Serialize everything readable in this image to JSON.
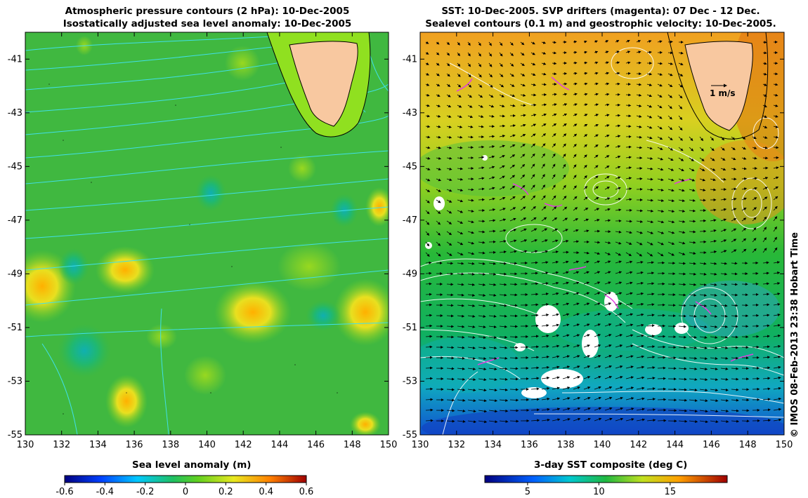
{
  "left_panel": {
    "title_line1": "Atmospheric pressure contours (2 hPa): 10-Dec-2005",
    "title_line2": "Isostatically adjusted sea level anomaly: 10-Dec-2005",
    "x_ticks": [
      "130",
      "132",
      "134",
      "136",
      "138",
      "140",
      "142",
      "144",
      "146",
      "148",
      "150"
    ],
    "y_ticks": [
      "-41",
      "-43",
      "-45",
      "-47",
      "-49",
      "-51",
      "-53",
      "-55"
    ],
    "colorbar_label": "Sea level anomaly (m)",
    "colorbar_ticks": [
      "-0.6",
      "-0.4",
      "-0.2",
      "0",
      "0.2",
      "0.4",
      "0.6"
    ],
    "colorbar_range": [
      -0.6,
      0.6
    ]
  },
  "right_panel": {
    "title_line1": "SST: 10-Dec-2005. SVP drifters (magenta): 07 Dec - 12 Dec.",
    "title_line2": "Sealevel contours (0.1 m) and geostrophic velocity: 10-Dec-2005.",
    "x_ticks": [
      "130",
      "132",
      "134",
      "136",
      "138",
      "140",
      "142",
      "144",
      "146",
      "148",
      "150"
    ],
    "y_ticks": [
      "-41",
      "-43",
      "-45",
      "-47",
      "-49",
      "-51",
      "-53",
      "-55"
    ],
    "velocity_scale_label": "1 m/s",
    "colorbar_label": "3-day SST composite (deg C)",
    "colorbar_ticks": [
      "5",
      "10",
      "15"
    ],
    "colorbar_range": [
      2,
      19
    ]
  },
  "map_extent": {
    "lon": [
      130,
      150
    ],
    "lat": [
      -55,
      -40
    ]
  },
  "credit": "© IMOS 08-Feb-2013 23:38 Hobart Time",
  "colors": {
    "land": "#f8c8a0",
    "drifters": "#e040e0",
    "pressure_contours": "#40e0e8",
    "sealevel_contours": "#ffffff"
  }
}
